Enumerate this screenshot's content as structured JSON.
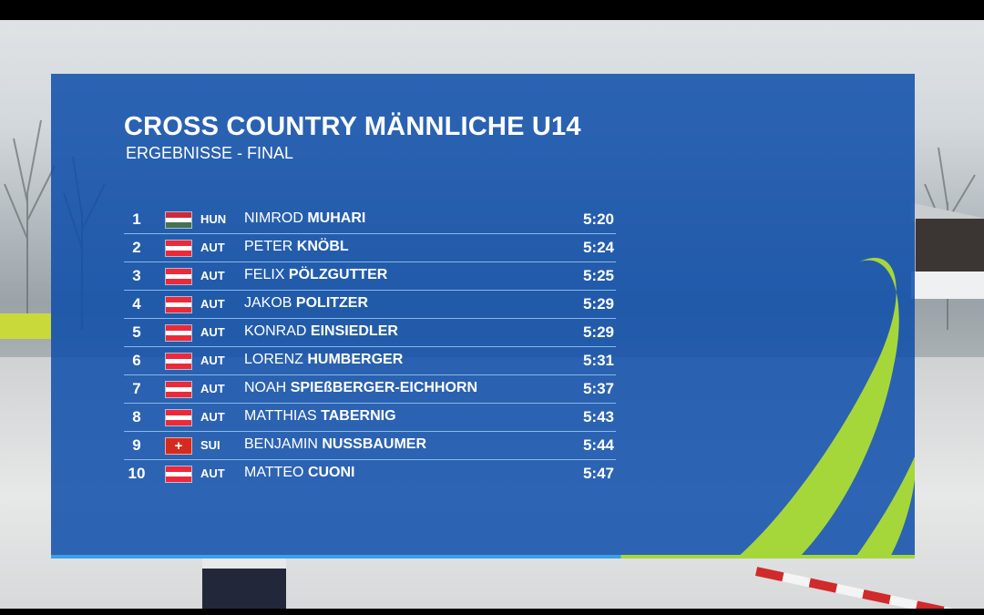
{
  "overlay": {
    "title": "CROSS COUNTRY MÄNNLICHE U14",
    "subtitle": "ERGEBNISSE - FINAL"
  },
  "results": [
    {
      "rank": "1",
      "nation": "HUN",
      "flag": "hungary-flag",
      "first": "NIMROD",
      "last": "MUHARI",
      "time": "5:20"
    },
    {
      "rank": "2",
      "nation": "AUT",
      "flag": "austria-flag",
      "first": "PETER",
      "last": "KNÖBL",
      "time": "5:24"
    },
    {
      "rank": "3",
      "nation": "AUT",
      "flag": "austria-flag",
      "first": "FELIX",
      "last": "PÖLZGUTTER",
      "time": "5:25"
    },
    {
      "rank": "4",
      "nation": "AUT",
      "flag": "austria-flag",
      "first": "JAKOB",
      "last": "POLITZER",
      "time": "5:29"
    },
    {
      "rank": "5",
      "nation": "AUT",
      "flag": "austria-flag",
      "first": "KONRAD",
      "last": "EINSIEDLER",
      "time": "5:29"
    },
    {
      "rank": "6",
      "nation": "AUT",
      "flag": "austria-flag",
      "first": "LORENZ",
      "last": "HUMBERGER",
      "time": "5:31"
    },
    {
      "rank": "7",
      "nation": "AUT",
      "flag": "austria-flag",
      "first": "NOAH",
      "last": "SPIEßBERGER-EICHHORN",
      "time": "5:37"
    },
    {
      "rank": "8",
      "nation": "AUT",
      "flag": "austria-flag",
      "first": "MATTHIAS",
      "last": "TABERNIG",
      "time": "5:43"
    },
    {
      "rank": "9",
      "nation": "SUI",
      "flag": "switzerland-flag",
      "first": "BENJAMIN",
      "last": "NUSSBAUMER",
      "time": "5:44"
    },
    {
      "rank": "10",
      "nation": "AUT",
      "flag": "austria-flag",
      "first": "MATTEO",
      "last": "CUONI",
      "time": "5:47"
    }
  ],
  "colors": {
    "overlay_blue": "#0e4eaa",
    "accent_green": "#a6d73a",
    "accent_light_blue": "#3aa0e8",
    "austria_red": "#ed2939",
    "hungary_red": "#ce2939",
    "hungary_green": "#477050",
    "swiss_red": "#d52b1e"
  }
}
